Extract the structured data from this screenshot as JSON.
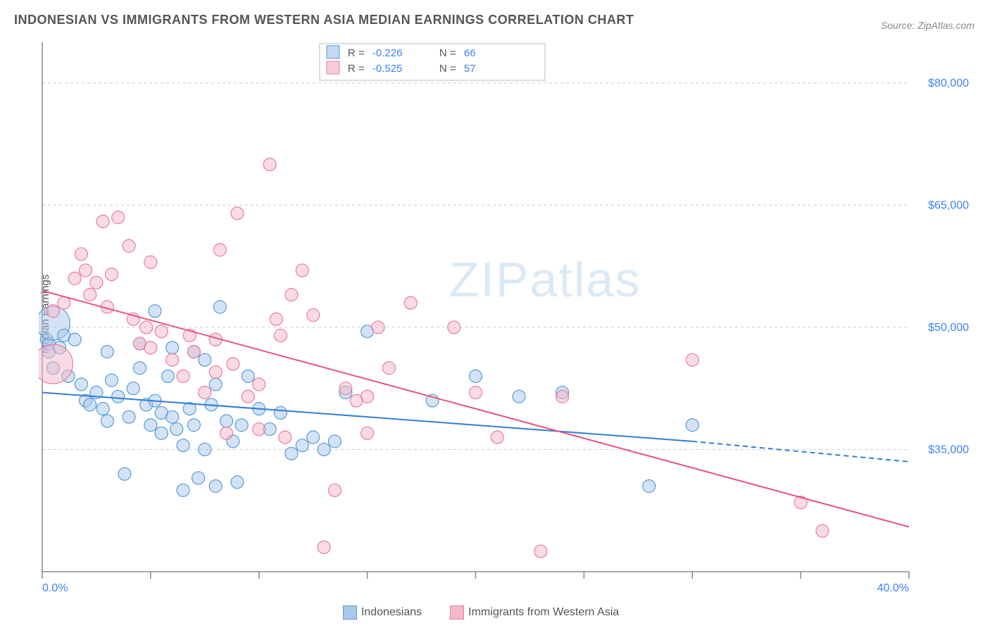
{
  "title": "INDONESIAN VS IMMIGRANTS FROM WESTERN ASIA MEDIAN EARNINGS CORRELATION CHART",
  "source": "Source: ZipAtlas.com",
  "ylabel": "Median Earnings",
  "watermark": "ZIPatlas",
  "chart": {
    "type": "scatter",
    "xlim": [
      0,
      40
    ],
    "ylim": [
      20000,
      85000
    ],
    "x_tick_positions": [
      0,
      5,
      10,
      15,
      20,
      25,
      30,
      35,
      40
    ],
    "x_tick_labels_shown": {
      "0": "0.0%",
      "40": "40.0%"
    },
    "y_ticks": [
      35000,
      50000,
      65000,
      80000
    ],
    "y_tick_labels": [
      "$35,000",
      "$50,000",
      "$65,000",
      "$80,000"
    ],
    "background_color": "#ffffff",
    "grid_color": "#cccccc",
    "axis_color": "#888888",
    "tick_label_color": "#3b82f6",
    "series": [
      {
        "name": "Indonesians",
        "color_fill": "#a8c8ec",
        "color_stroke": "#5b9bd5",
        "fill_opacity": 0.5,
        "marker_radius": 9,
        "R": "-0.226",
        "N": "66",
        "trend": {
          "x1": 0,
          "y1": 42000,
          "x2": 30,
          "y2": 36000,
          "dash_x1": 30,
          "dash_y1": 36000,
          "dash_x2": 40,
          "dash_y2": 33500,
          "color": "#2f7ed8",
          "width": 2
        },
        "points": [
          [
            0.2,
            48500
          ],
          [
            0.3,
            48000
          ],
          [
            0.3,
            47000
          ],
          [
            0.5,
            45000
          ],
          [
            0.8,
            47500
          ],
          [
            0.5,
            50500,
            24
          ],
          [
            1,
            49000
          ],
          [
            1.2,
            44000
          ],
          [
            1.5,
            48500
          ],
          [
            1.8,
            43000
          ],
          [
            2,
            41000
          ],
          [
            2.2,
            40500
          ],
          [
            2.5,
            42000
          ],
          [
            2.8,
            40000
          ],
          [
            3,
            47000
          ],
          [
            3,
            38500
          ],
          [
            3.2,
            43500
          ],
          [
            3.5,
            41500
          ],
          [
            3.8,
            32000
          ],
          [
            4,
            39000
          ],
          [
            4.2,
            42500
          ],
          [
            4.5,
            45000
          ],
          [
            4.5,
            48000
          ],
          [
            4.8,
            40500
          ],
          [
            5,
            38000
          ],
          [
            5.2,
            41000
          ],
          [
            5.2,
            52000
          ],
          [
            5.5,
            39500
          ],
          [
            5.5,
            37000
          ],
          [
            5.8,
            44000
          ],
          [
            6,
            47500
          ],
          [
            6,
            39000
          ],
          [
            6.2,
            37500
          ],
          [
            6.5,
            35500
          ],
          [
            6.5,
            30000
          ],
          [
            6.8,
            40000
          ],
          [
            7,
            47000
          ],
          [
            7,
            38000
          ],
          [
            7.2,
            31500
          ],
          [
            7.5,
            35000
          ],
          [
            7.5,
            46000
          ],
          [
            7.8,
            40500
          ],
          [
            8,
            30500
          ],
          [
            8,
            43000
          ],
          [
            8.2,
            52500
          ],
          [
            8.5,
            38500
          ],
          [
            8.8,
            36000
          ],
          [
            9,
            31000
          ],
          [
            9.2,
            38000
          ],
          [
            9.5,
            44000
          ],
          [
            10,
            40000
          ],
          [
            10.5,
            37500
          ],
          [
            11,
            39500
          ],
          [
            11.5,
            34500
          ],
          [
            12,
            35500
          ],
          [
            12.5,
            36500
          ],
          [
            13,
            35000
          ],
          [
            13.5,
            36000
          ],
          [
            14,
            42000
          ],
          [
            15,
            49500
          ],
          [
            18,
            41000
          ],
          [
            20,
            44000
          ],
          [
            22,
            41500
          ],
          [
            24,
            42000
          ],
          [
            28,
            30500
          ],
          [
            30,
            38000
          ]
        ]
      },
      {
        "name": "Immigrants from Western Asia",
        "color_fill": "#f5b8c8",
        "color_stroke": "#e87ca0",
        "fill_opacity": 0.5,
        "marker_radius": 9,
        "R": "-0.525",
        "N": "57",
        "trend": {
          "x1": 0,
          "y1": 54500,
          "x2": 40,
          "y2": 25500,
          "color": "#e75480",
          "width": 2
        },
        "points": [
          [
            0.5,
            45500,
            28
          ],
          [
            0.5,
            52000
          ],
          [
            1,
            53000
          ],
          [
            1.5,
            56000
          ],
          [
            1.8,
            59000
          ],
          [
            2,
            57000
          ],
          [
            2.2,
            54000
          ],
          [
            2.5,
            55500
          ],
          [
            2.8,
            63000
          ],
          [
            3,
            52500
          ],
          [
            3.2,
            56500
          ],
          [
            3.5,
            63500
          ],
          [
            4,
            60000
          ],
          [
            4.2,
            51000
          ],
          [
            4.5,
            48000
          ],
          [
            4.8,
            50000
          ],
          [
            5,
            58000
          ],
          [
            5,
            47500
          ],
          [
            5.5,
            49500
          ],
          [
            6,
            46000
          ],
          [
            6.5,
            44000
          ],
          [
            6.8,
            49000
          ],
          [
            7,
            47000
          ],
          [
            7.5,
            42000
          ],
          [
            8,
            48500
          ],
          [
            8,
            44500
          ],
          [
            8.2,
            59500
          ],
          [
            8.5,
            37000
          ],
          [
            8.8,
            45500
          ],
          [
            9,
            64000
          ],
          [
            9.5,
            41500
          ],
          [
            10,
            43000
          ],
          [
            10,
            37500
          ],
          [
            10.5,
            70000
          ],
          [
            10.8,
            51000
          ],
          [
            11,
            49000
          ],
          [
            11.2,
            36500
          ],
          [
            11.5,
            54000
          ],
          [
            12,
            57000
          ],
          [
            12.5,
            51500
          ],
          [
            13,
            23000
          ],
          [
            13.5,
            30000
          ],
          [
            14,
            42500
          ],
          [
            14.5,
            41000
          ],
          [
            15,
            37000
          ],
          [
            15,
            41500
          ],
          [
            15.5,
            50000
          ],
          [
            16,
            45000
          ],
          [
            17,
            53000
          ],
          [
            19,
            50000
          ],
          [
            20,
            42000
          ],
          [
            21,
            36500
          ],
          [
            23,
            22500
          ],
          [
            24,
            41500
          ],
          [
            30,
            46000
          ],
          [
            35,
            28500
          ],
          [
            36,
            25000
          ]
        ]
      }
    ]
  },
  "top_legend": {
    "labels": [
      "R =",
      "N ="
    ],
    "value_color": "#3b82f6",
    "label_color": "#555555"
  },
  "bottom_legend": {
    "items": [
      {
        "label": "Indonesians",
        "fill": "#a8c8ec",
        "stroke": "#5b9bd5"
      },
      {
        "label": "Immigrants from Western Asia",
        "fill": "#f5b8c8",
        "stroke": "#e87ca0"
      }
    ]
  }
}
